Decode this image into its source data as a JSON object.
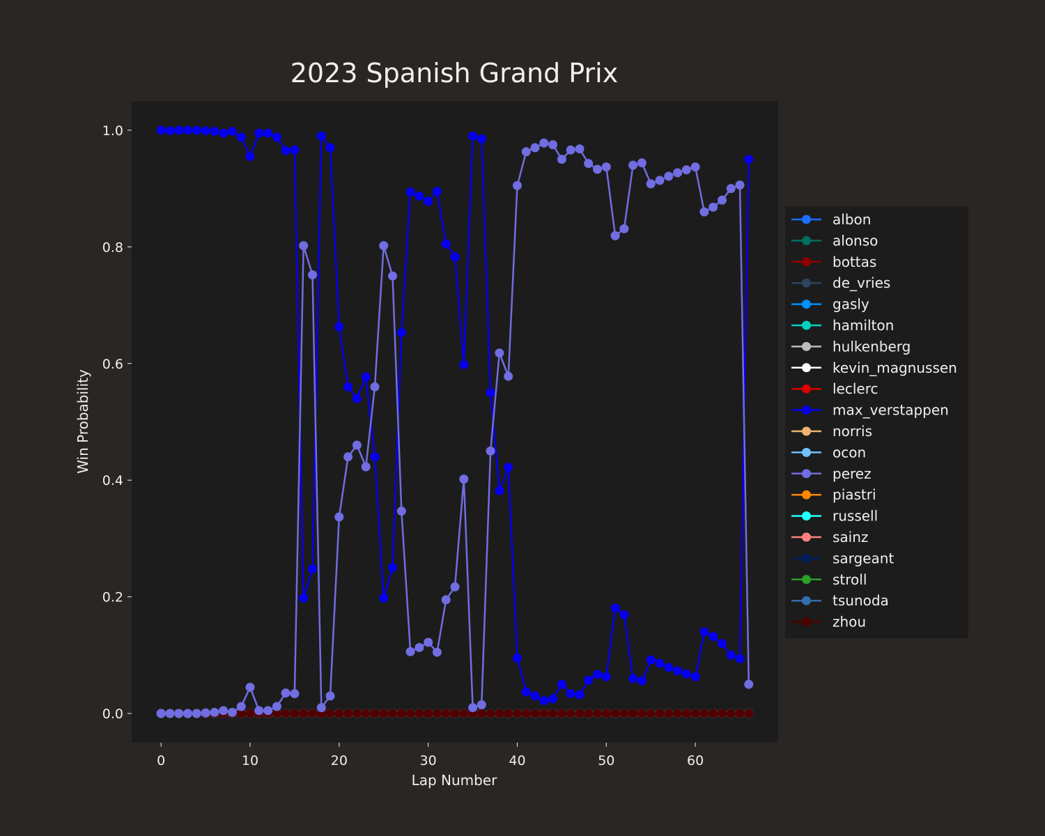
{
  "chart_data": {
    "type": "line",
    "title": "2023 Spanish Grand Prix",
    "xlabel": "Lap Number",
    "ylabel": "Win Probability",
    "xlim": [
      -3.3,
      69.3
    ],
    "ylim": [
      -0.05,
      1.05
    ],
    "xticks": [
      "0",
      "10",
      "20",
      "30",
      "40",
      "50",
      "60"
    ],
    "xtick_values": [
      0,
      10,
      20,
      30,
      40,
      50,
      60
    ],
    "yticks": [
      "0.0",
      "0.2",
      "0.4",
      "0.6",
      "0.8",
      "1.0"
    ],
    "ytick_values": [
      0,
      0.2,
      0.4,
      0.6,
      0.8,
      1.0
    ],
    "grid": false,
    "legend_position": "outside-right",
    "x": [
      0,
      1,
      2,
      3,
      4,
      5,
      6,
      7,
      8,
      9,
      10,
      11,
      12,
      13,
      14,
      15,
      16,
      17,
      18,
      19,
      20,
      21,
      22,
      23,
      24,
      25,
      26,
      27,
      28,
      29,
      30,
      31,
      32,
      33,
      34,
      35,
      36,
      37,
      38,
      39,
      40,
      41,
      42,
      43,
      44,
      45,
      46,
      47,
      48,
      49,
      50,
      51,
      52,
      53,
      54,
      55,
      56,
      57,
      58,
      59,
      60,
      61,
      62,
      63,
      64,
      65,
      66
    ],
    "series": [
      {
        "name": "albon",
        "color": "#1e6eff",
        "values": null
      },
      {
        "name": "alonso",
        "color": "#006f62",
        "values": null
      },
      {
        "name": "bottas",
        "color": "#900000",
        "values": null
      },
      {
        "name": "de_vries",
        "color": "#2b4562",
        "values": null
      },
      {
        "name": "gasly",
        "color": "#0090ff",
        "values": null
      },
      {
        "name": "hamilton",
        "color": "#00d2be",
        "values": null
      },
      {
        "name": "hulkenberg",
        "color": "#bdbdbd",
        "values": null
      },
      {
        "name": "kevin_magnussen",
        "color": "#ffffff",
        "values": null
      },
      {
        "name": "leclerc",
        "color": "#dc0000",
        "values": null
      },
      {
        "name": "max_verstappen",
        "color": "#0600ef",
        "values": [
          1.0,
          0.999,
          1.0,
          1.0,
          1.0,
          0.999,
          0.998,
          0.995,
          0.998,
          0.988,
          0.955,
          0.995,
          0.995,
          0.988,
          0.965,
          0.966,
          0.198,
          0.248,
          0.99,
          0.97,
          0.663,
          0.56,
          0.54,
          0.577,
          0.44,
          0.198,
          0.25,
          0.653,
          0.894,
          0.887,
          0.878,
          0.895,
          0.805,
          0.783,
          0.598,
          0.99,
          0.985,
          0.55,
          0.382,
          0.422,
          0.095,
          0.037,
          0.03,
          0.022,
          0.025,
          0.05,
          0.034,
          0.032,
          0.057,
          0.067,
          0.063,
          0.181,
          0.169,
          0.06,
          0.056,
          0.092,
          0.086,
          0.079,
          0.073,
          0.068,
          0.063,
          0.14,
          0.132,
          0.12,
          0.1,
          0.094,
          0.95
        ]
      },
      {
        "name": "norris",
        "color": "#eeb370",
        "values": null
      },
      {
        "name": "ocon",
        "color": "#70c2ff",
        "values": null
      },
      {
        "name": "perez",
        "color": "#716de2",
        "values": [
          0,
          0,
          0,
          0,
          0,
          0.001,
          0.002,
          0.005,
          0.002,
          0.012,
          0.045,
          0.005,
          0.005,
          0.012,
          0.035,
          0.034,
          0.802,
          0.752,
          0.01,
          0.03,
          0.337,
          0.44,
          0.46,
          0.423,
          0.56,
          0.802,
          0.75,
          0.347,
          0.106,
          0.113,
          0.122,
          0.105,
          0.195,
          0.217,
          0.402,
          0.01,
          0.015,
          0.45,
          0.618,
          0.578,
          0.905,
          0.963,
          0.97,
          0.978,
          0.975,
          0.95,
          0.966,
          0.968,
          0.943,
          0.933,
          0.937,
          0.819,
          0.831,
          0.94,
          0.944,
          0.908,
          0.914,
          0.921,
          0.927,
          0.932,
          0.937,
          0.86,
          0.868,
          0.88,
          0.9,
          0.906,
          0.05
        ]
      },
      {
        "name": "piastri",
        "color": "#ff8700",
        "values": null
      },
      {
        "name": "russell",
        "color": "#24ffff",
        "values": null
      },
      {
        "name": "sainz",
        "color": "#ff8181",
        "values": null
      },
      {
        "name": "sargeant",
        "color": "#00205e",
        "values": null
      },
      {
        "name": "stroll",
        "color": "#2ca02c",
        "values": null
      },
      {
        "name": "tsunoda",
        "color": "#356cac",
        "values": null
      },
      {
        "name": "zhou",
        "color": "#500000",
        "values": null
      }
    ]
  }
}
